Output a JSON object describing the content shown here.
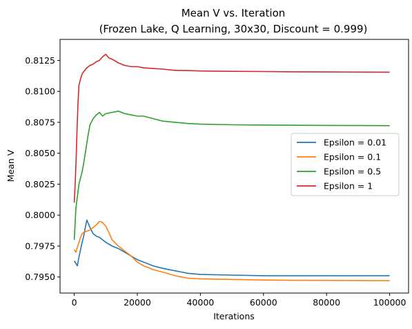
{
  "chart_data": {
    "type": "line",
    "title": "Mean V vs. Iteration",
    "subtitle": "(Frozen Lake, Q Learning, 30x30, Discount = 0.999)",
    "xlabel": "Iterations",
    "ylabel": "Mean V",
    "xlim": [
      -4500,
      106000
    ],
    "ylim": [
      0.7937,
      0.8142
    ],
    "xticks": [
      0,
      20000,
      40000,
      60000,
      80000,
      100000
    ],
    "xtick_labels": [
      "0",
      "20000",
      "40000",
      "60000",
      "80000",
      "100000"
    ],
    "yticks": [
      0.795,
      0.7975,
      0.8,
      0.8025,
      0.805,
      0.8075,
      0.81,
      0.8125
    ],
    "ytick_labels": [
      "0.7950",
      "0.7975",
      "0.8000",
      "0.8025",
      "0.8050",
      "0.8075",
      "0.8100",
      "0.8125"
    ],
    "grid": false,
    "legend_position": "center-right",
    "series": [
      {
        "name": "Epsilon = 0.01",
        "color": "#1f77b4",
        "x": [
          0,
          500,
          1000,
          1500,
          2000,
          2500,
          3000,
          3500,
          4000,
          4500,
          5000,
          6000,
          7000,
          8000,
          9000,
          10000,
          12000,
          14000,
          16000,
          18000,
          20000,
          22000,
          25000,
          28000,
          32000,
          36000,
          40000,
          50000,
          60000,
          70000,
          80000,
          90000,
          100000
        ],
        "y": [
          0.7963,
          0.7961,
          0.7959,
          0.7966,
          0.7972,
          0.7978,
          0.7983,
          0.799,
          0.7996,
          0.7993,
          0.799,
          0.7985,
          0.7983,
          0.7982,
          0.798,
          0.7978,
          0.7975,
          0.7973,
          0.797,
          0.7967,
          0.7964,
          0.7962,
          0.7959,
          0.7957,
          0.7955,
          0.7953,
          0.7952,
          0.79515,
          0.7951,
          0.7951,
          0.7951,
          0.7951,
          0.7951
        ]
      },
      {
        "name": "Epsilon = 0.1",
        "color": "#ff7f0e",
        "x": [
          0,
          500,
          1000,
          1500,
          2000,
          2500,
          3000,
          4000,
          5000,
          6000,
          7000,
          8000,
          9000,
          10000,
          11000,
          12000,
          14000,
          16000,
          18000,
          20000,
          22000,
          25000,
          28000,
          32000,
          36000,
          40000,
          50000,
          60000,
          70000,
          80000,
          90000,
          100000
        ],
        "y": [
          0.7972,
          0.797,
          0.7974,
          0.7978,
          0.7982,
          0.7985,
          0.7986,
          0.7987,
          0.7988,
          0.799,
          0.7992,
          0.7995,
          0.7994,
          0.7991,
          0.7986,
          0.798,
          0.7975,
          0.7971,
          0.7967,
          0.7962,
          0.7959,
          0.7956,
          0.7954,
          0.7951,
          0.7949,
          0.79485,
          0.7948,
          0.79475,
          0.79473,
          0.79472,
          0.79471,
          0.7947
        ]
      },
      {
        "name": "Epsilon = 0.5",
        "color": "#2ca02c",
        "x": [
          0,
          500,
          1000,
          1500,
          2000,
          2500,
          3000,
          3500,
          4000,
          4500,
          5000,
          6000,
          7000,
          8000,
          9000,
          10000,
          12000,
          14000,
          16000,
          18000,
          20000,
          22000,
          25000,
          28000,
          32000,
          36000,
          40000,
          50000,
          60000,
          70000,
          80000,
          90000,
          100000
        ],
        "y": [
          0.798,
          0.8005,
          0.8015,
          0.8025,
          0.803,
          0.8035,
          0.8042,
          0.805,
          0.8058,
          0.8066,
          0.8073,
          0.8078,
          0.8081,
          0.8083,
          0.808,
          0.8082,
          0.8083,
          0.8084,
          0.8082,
          0.8081,
          0.808,
          0.808,
          0.8078,
          0.8076,
          0.8075,
          0.8074,
          0.80735,
          0.8073,
          0.80728,
          0.80726,
          0.80725,
          0.80724,
          0.80723
        ]
      },
      {
        "name": "Epsilon = 1",
        "color": "#d62728",
        "x": [
          0,
          300,
          600,
          900,
          1200,
          1500,
          2000,
          2500,
          3000,
          4000,
          5000,
          6000,
          7000,
          8000,
          9000,
          10000,
          11000,
          12000,
          14000,
          16000,
          18000,
          20000,
          22000,
          25000,
          28000,
          32000,
          36000,
          40000,
          50000,
          60000,
          70000,
          80000,
          90000,
          100000
        ],
        "y": [
          0.801,
          0.8025,
          0.8045,
          0.807,
          0.809,
          0.8105,
          0.811,
          0.8114,
          0.8116,
          0.8119,
          0.8121,
          0.8122,
          0.8124,
          0.8125,
          0.8128,
          0.813,
          0.8127,
          0.8126,
          0.8123,
          0.8121,
          0.812,
          0.812,
          0.8119,
          0.81185,
          0.8118,
          0.8117,
          0.81168,
          0.81165,
          0.81162,
          0.8116,
          0.81158,
          0.81157,
          0.81156,
          0.81155
        ]
      }
    ]
  }
}
